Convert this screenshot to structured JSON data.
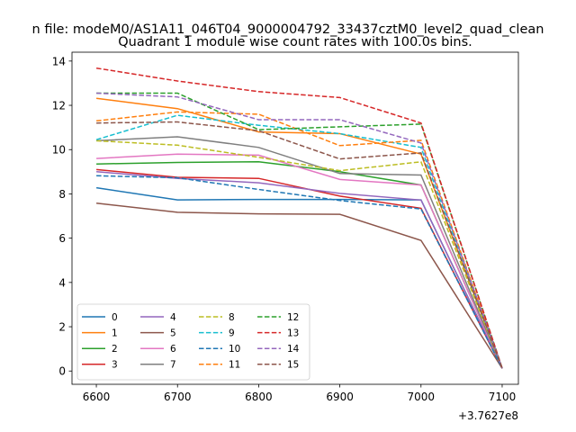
{
  "chart_data": {
    "type": "line",
    "suptitle": "n file: modeM0/AS1A11_046T04_9000004792_33437cztM0_level2_quad_clean",
    "title": "Quadrant 1 module wise count rates with 100.0s bins.",
    "xlabel": "",
    "ylabel": "",
    "x_offset_label": "+3.7627e8",
    "x": [
      6600,
      6700,
      6800,
      6900,
      7000,
      7100
    ],
    "xlim": [
      6570,
      7120
    ],
    "ylim": [
      -0.6,
      14.4
    ],
    "xticks": [
      "6600",
      "6700",
      "6800",
      "6900",
      "7000",
      "7100"
    ],
    "yticks": [
      "0",
      "2",
      "4",
      "6",
      "8",
      "10",
      "12",
      "14"
    ],
    "grid": false,
    "legend": "lower-left",
    "legend_columns": 4,
    "series": [
      {
        "name": "0",
        "color": "#1f77b4",
        "dash": false,
        "values": [
          8.28,
          7.73,
          7.75,
          7.75,
          7.73,
          0.12
        ]
      },
      {
        "name": "1",
        "color": "#ff7f0e",
        "dash": false,
        "values": [
          12.32,
          11.85,
          10.8,
          10.72,
          9.8,
          0.12
        ]
      },
      {
        "name": "2",
        "color": "#2ca02c",
        "dash": false,
        "values": [
          9.35,
          9.42,
          9.45,
          9.0,
          8.4,
          0.12
        ]
      },
      {
        "name": "3",
        "color": "#d62728",
        "dash": false,
        "values": [
          9.1,
          8.75,
          8.7,
          7.9,
          7.35,
          0.12
        ]
      },
      {
        "name": "4",
        "color": "#9467bd",
        "dash": false,
        "values": [
          9.0,
          8.7,
          8.5,
          8.02,
          7.72,
          0.12
        ]
      },
      {
        "name": "5",
        "color": "#8c564b",
        "dash": false,
        "values": [
          7.58,
          7.17,
          7.1,
          7.08,
          5.9,
          0.12
        ]
      },
      {
        "name": "6",
        "color": "#e377c2",
        "dash": false,
        "values": [
          9.6,
          9.8,
          9.75,
          8.65,
          8.4,
          0.12
        ]
      },
      {
        "name": "7",
        "color": "#7f7f7f",
        "dash": false,
        "values": [
          10.4,
          10.58,
          10.1,
          8.92,
          8.85,
          0.12
        ]
      },
      {
        "name": "8",
        "color": "#bcbd22",
        "dash": true,
        "values": [
          10.4,
          10.2,
          9.65,
          9.05,
          9.45,
          0.12
        ]
      },
      {
        "name": "9",
        "color": "#17becf",
        "dash": true,
        "values": [
          10.45,
          11.55,
          11.1,
          10.72,
          10.1,
          0.12
        ]
      },
      {
        "name": "10",
        "color": "#1f77b4",
        "dash": true,
        "values": [
          8.82,
          8.73,
          8.2,
          7.7,
          7.32,
          0.12
        ]
      },
      {
        "name": "11",
        "color": "#ff7f0e",
        "dash": true,
        "values": [
          11.3,
          11.7,
          11.6,
          10.18,
          10.42,
          0.12
        ]
      },
      {
        "name": "12",
        "color": "#2ca02c",
        "dash": true,
        "values": [
          12.55,
          12.55,
          10.9,
          11.03,
          11.15,
          0.12
        ]
      },
      {
        "name": "13",
        "color": "#d62728",
        "dash": true,
        "values": [
          13.68,
          13.1,
          12.62,
          12.35,
          11.2,
          0.12
        ]
      },
      {
        "name": "14",
        "color": "#9467bd",
        "dash": true,
        "values": [
          12.55,
          12.38,
          11.35,
          11.35,
          10.3,
          0.12
        ]
      },
      {
        "name": "15",
        "color": "#8c564b",
        "dash": true,
        "values": [
          11.2,
          11.25,
          10.85,
          9.58,
          9.85,
          0.12
        ]
      }
    ]
  }
}
